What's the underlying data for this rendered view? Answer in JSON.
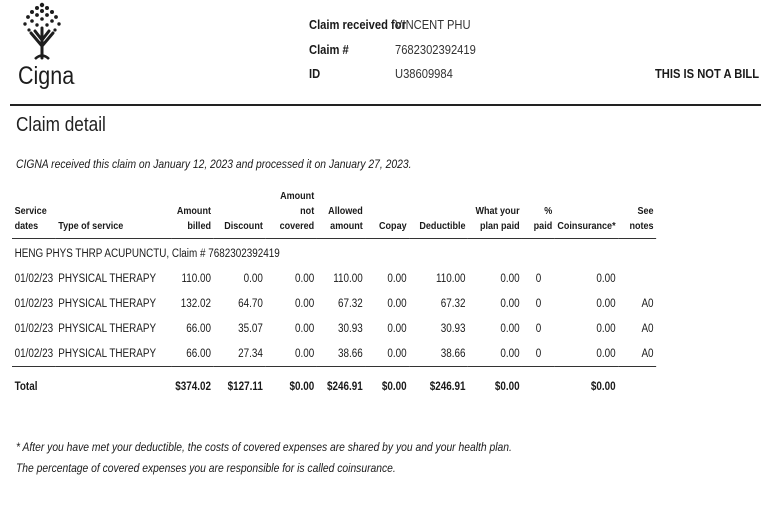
{
  "brand": {
    "name": "Cigna",
    "mark": "."
  },
  "header": {
    "received_label": "Claim received for",
    "received_value": "VINCENT PHU",
    "claim_label": "Claim #",
    "claim_value": "7682302392419",
    "id_label": "ID",
    "id_value": "U38609984",
    "notice": "THIS IS NOT A BILL"
  },
  "title": "Claim detail",
  "received_text": "CIGNA received this claim on January 12, 2023 and processed it on January 27, 2023.",
  "table": {
    "headers": [
      [
        "Service",
        "dates"
      ],
      [
        "Type of service"
      ],
      [
        "Amount",
        "billed"
      ],
      [
        "Discount"
      ],
      [
        "Amount",
        "not",
        "covered"
      ],
      [
        "Allowed",
        "amount"
      ],
      [
        "Copay"
      ],
      [
        "Deductible"
      ],
      [
        "What your",
        "plan paid"
      ],
      [
        "%",
        "paid"
      ],
      [
        "Coinsurance*"
      ],
      [
        "See",
        "notes"
      ]
    ],
    "group": "HENG PHYS THRP ACUPUNCTU, Claim # 7682302392419",
    "rows": [
      [
        "01/02/23",
        "PHYSICAL THERAPY",
        "110.00",
        "0.00",
        "0.00",
        "110.00",
        "0.00",
        "110.00",
        "0.00",
        "0",
        "0.00",
        ""
      ],
      [
        "01/02/23",
        "PHYSICAL THERAPY",
        "132.02",
        "64.70",
        "0.00",
        "67.32",
        "0.00",
        "67.32",
        "0.00",
        "0",
        "0.00",
        "A0"
      ],
      [
        "01/02/23",
        "PHYSICAL THERAPY",
        "66.00",
        "35.07",
        "0.00",
        "30.93",
        "0.00",
        "30.93",
        "0.00",
        "0",
        "0.00",
        "A0"
      ],
      [
        "01/02/23",
        "PHYSICAL THERAPY",
        "66.00",
        "27.34",
        "0.00",
        "38.66",
        "0.00",
        "38.66",
        "0.00",
        "0",
        "0.00",
        "A0"
      ]
    ],
    "total": [
      "Total",
      "",
      "$374.02",
      "$127.11",
      "$0.00",
      "$246.91",
      "$0.00",
      "$246.91",
      "$0.00",
      "",
      "$0.00",
      ""
    ]
  },
  "footnote_1": "* After you have met your deductible, the costs of covered expenses are shared by you and your health plan.",
  "footnote_2": "The percentage of covered expenses you are responsible for is called coinsurance."
}
